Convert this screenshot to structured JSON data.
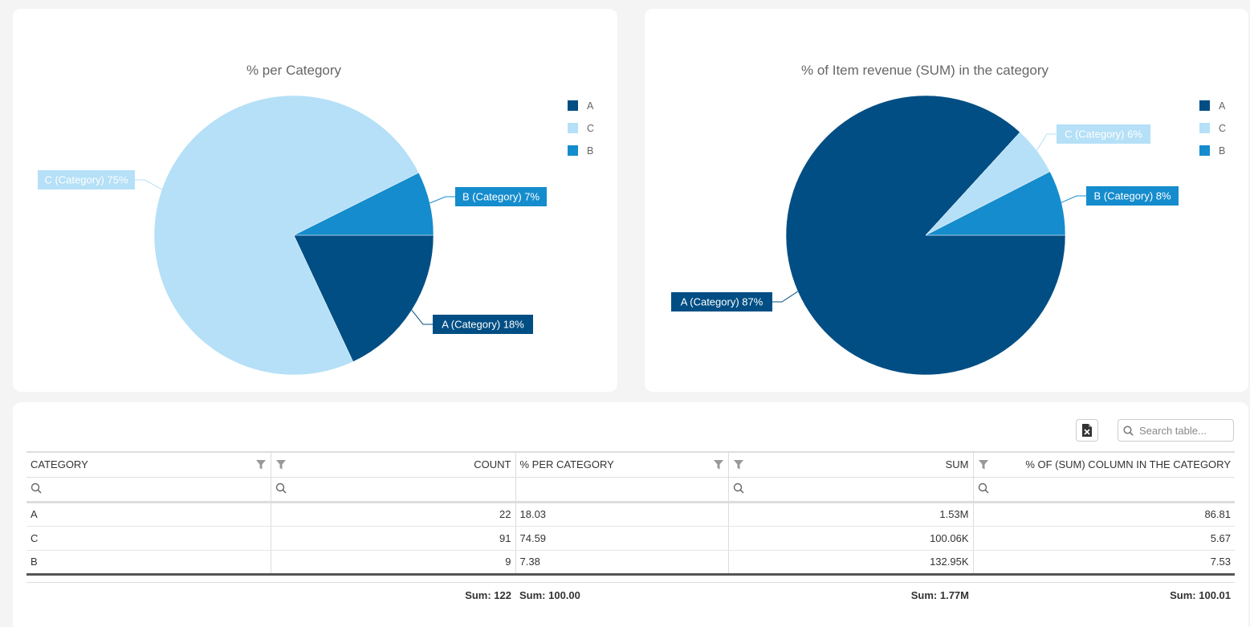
{
  "charts": [
    {
      "title": "% per Category",
      "legend": [
        "A",
        "C",
        "B"
      ],
      "slices": [
        {
          "category": "A",
          "label": "A (Category) 18%",
          "value": 18.03,
          "color": "#004e84"
        },
        {
          "category": "C",
          "label": "C (Category) 75%",
          "value": 74.59,
          "color": "#b5e0f7"
        },
        {
          "category": "B",
          "label": "B (Category) 7%",
          "value": 7.38,
          "color": "#158ccd"
        }
      ]
    },
    {
      "title": "% of Item revenue (SUM) in the category",
      "legend": [
        "A",
        "C",
        "B"
      ],
      "slices": [
        {
          "category": "A",
          "label": "A (Category) 87%",
          "value": 86.81,
          "color": "#004e84"
        },
        {
          "category": "C",
          "label": "C (Category) 6%",
          "value": 5.67,
          "color": "#b5e0f7"
        },
        {
          "category": "B",
          "label": "B (Category) 8%",
          "value": 7.53,
          "color": "#158ccd"
        }
      ]
    }
  ],
  "chart_data": [
    {
      "type": "pie",
      "title": "% per Category",
      "categories": [
        "A",
        "C",
        "B"
      ],
      "values": [
        18.03,
        74.59,
        7.38
      ],
      "legend": "right"
    },
    {
      "type": "pie",
      "title": "% of Item revenue (SUM) in the category",
      "categories": [
        "A",
        "C",
        "B"
      ],
      "values": [
        86.81,
        5.67,
        7.53
      ],
      "legend": "right"
    }
  ],
  "toolbar": {
    "export_icon": "excel-export-icon",
    "search_placeholder": "Search table..."
  },
  "table": {
    "headers": {
      "category": "CATEGORY",
      "count": "COUNT",
      "pct_category": "% PER CATEGORY",
      "sum": "SUM",
      "pct_sum": "% OF (SUM) COLUMN IN THE CATEGORY"
    },
    "rows": [
      {
        "category": "A",
        "count": "22",
        "pct_category": "18.03",
        "sum": "1.53M",
        "pct_sum": "86.81"
      },
      {
        "category": "C",
        "count": "91",
        "pct_category": "74.59",
        "sum": "100.06K",
        "pct_sum": "5.67"
      },
      {
        "category": "B",
        "count": "9",
        "pct_category": "7.38",
        "sum": "132.95K",
        "pct_sum": "7.53"
      }
    ],
    "footer": {
      "count": "Sum: 122",
      "pct_category": "Sum: 100.00",
      "sum": "Sum: 1.77M",
      "pct_sum": "Sum: 100.01"
    }
  }
}
